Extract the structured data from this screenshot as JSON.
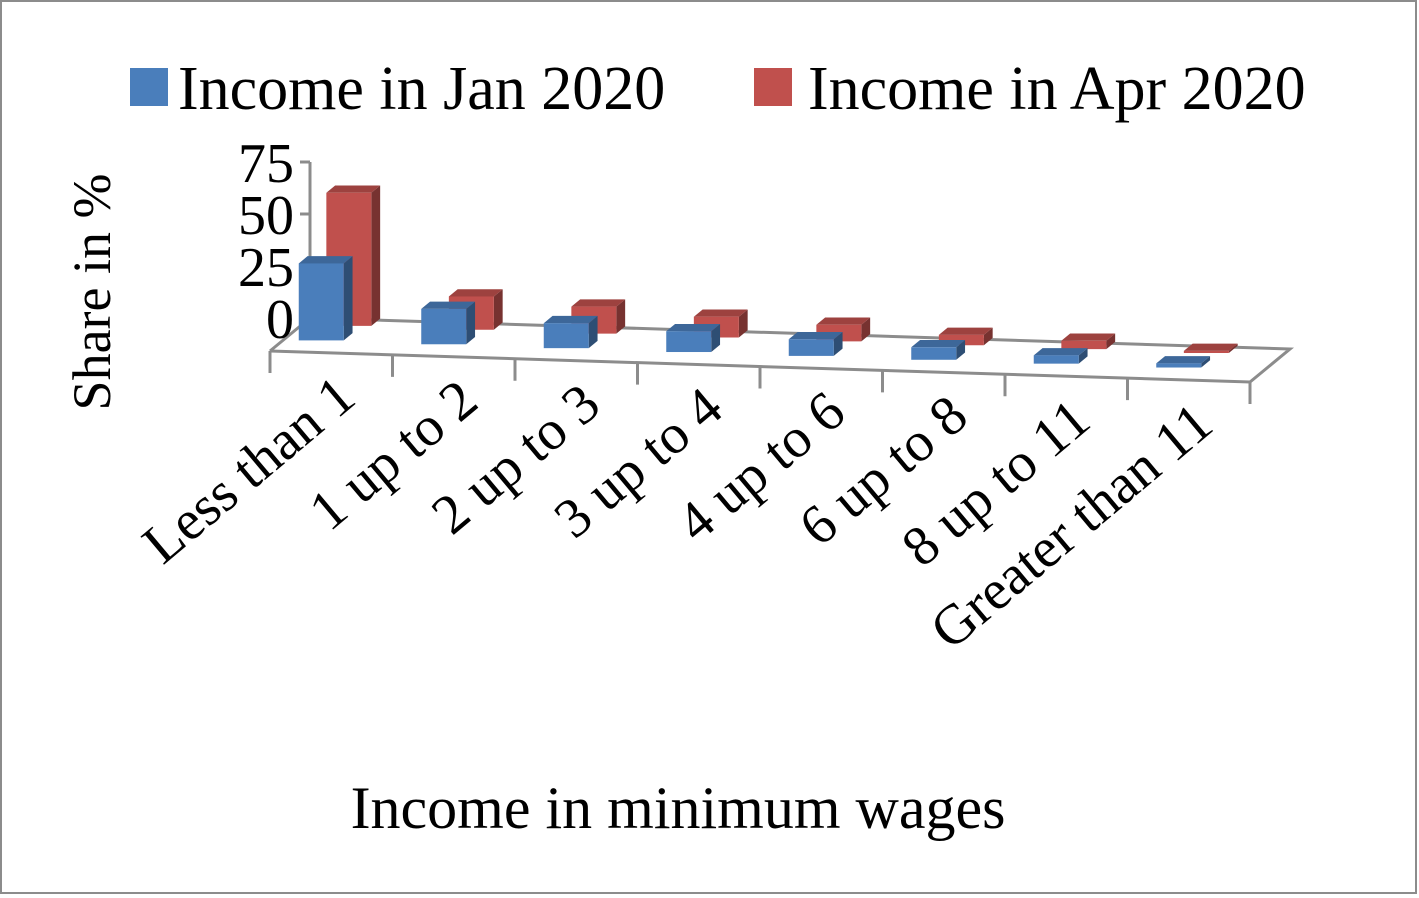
{
  "chart_data": {
    "type": "bar",
    "three_d": true,
    "categories": [
      "Less than 1",
      "1 up to 2",
      "2 up to 3",
      "3 up to 4",
      "4 up to 6",
      "6 up to 8",
      "8 up to 11",
      "Greater than 11"
    ],
    "series": [
      {
        "name": "Income in Jan 2020",
        "color": "#4a7ebb",
        "values": [
          37,
          17,
          12,
          10,
          8,
          6,
          4,
          2
        ]
      },
      {
        "name": "Income in Apr 2020",
        "color": "#c0504d",
        "values": [
          64,
          16,
          13,
          10,
          8,
          5,
          4,
          1
        ]
      }
    ],
    "xlabel": "Income in minimum wages",
    "ylabel": "Share in %",
    "yticks": [
      0,
      25,
      50,
      75
    ],
    "ylim": [
      0,
      75
    ],
    "legend_position": "top",
    "grid": false
  }
}
